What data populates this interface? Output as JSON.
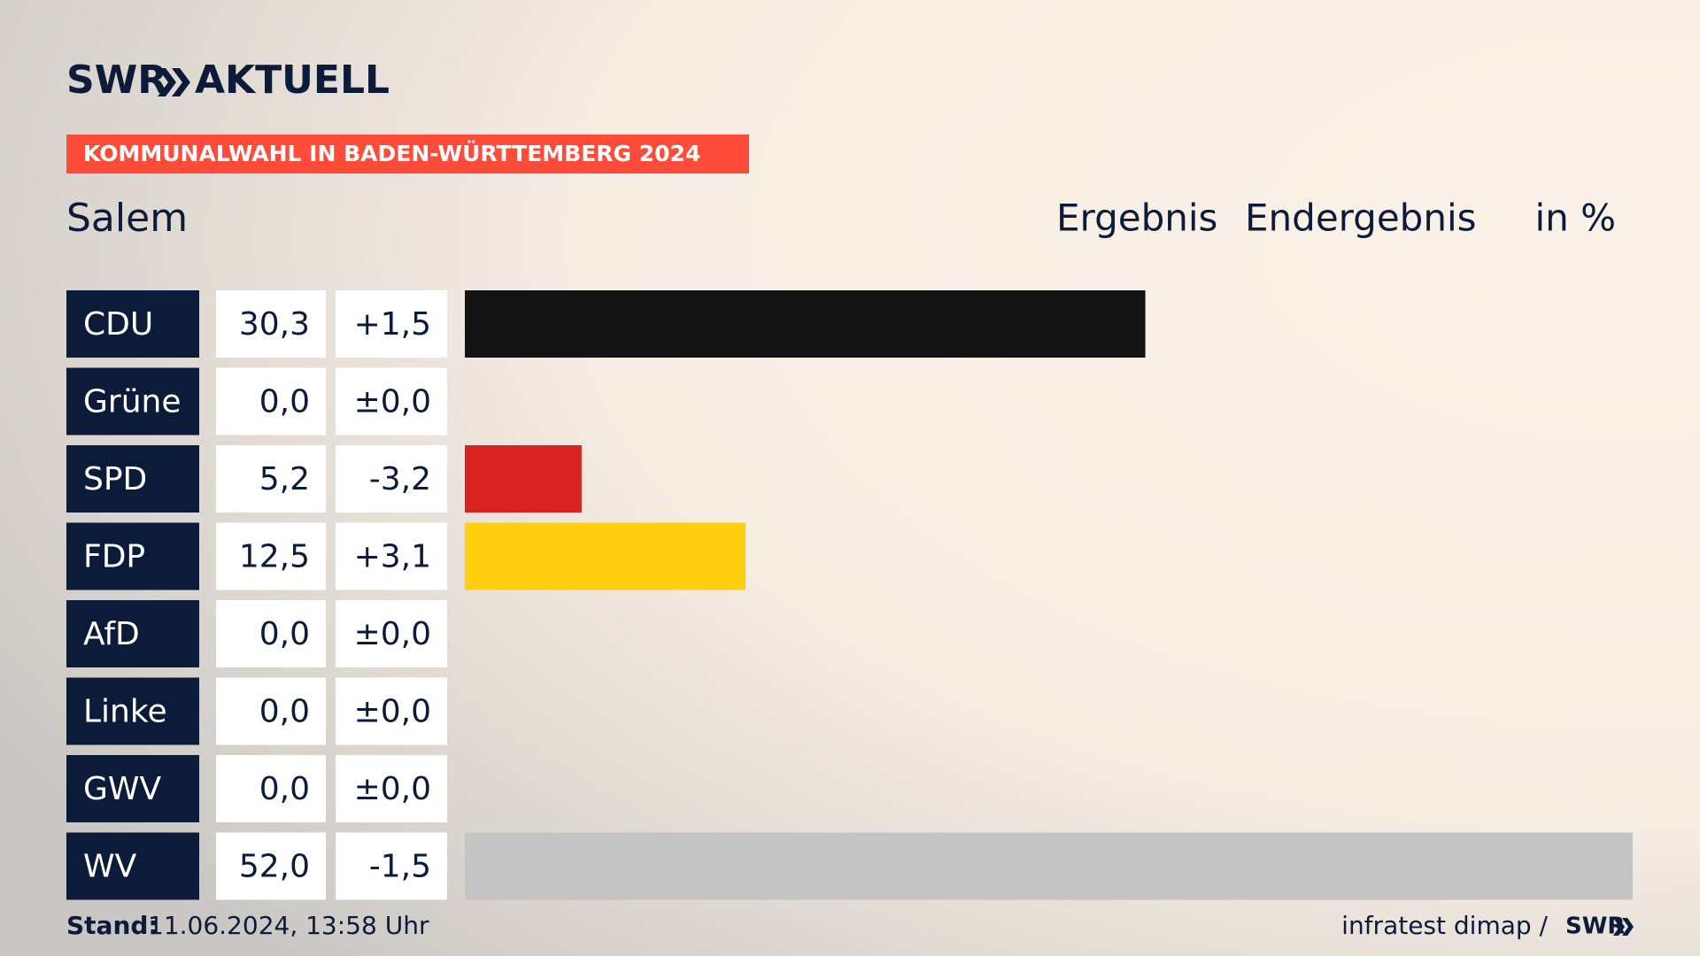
{
  "header": {
    "brand": "SWR",
    "product": "AKTUELL",
    "banner": "KOMMUNALWAHL IN BADEN-WÜRTTEMBERG 2024"
  },
  "chart_data": {
    "type": "bar",
    "title": "Salem",
    "columns": [
      "Ergebnis",
      "Endergebnis",
      "in %"
    ],
    "categories": [
      "CDU",
      "Grüne",
      "SPD",
      "FDP",
      "AfD",
      "Linke",
      "GWV",
      "WV"
    ],
    "values": [
      30.3,
      0.0,
      5.2,
      12.5,
      0.0,
      0.0,
      0.0,
      52.0
    ],
    "value_labels": [
      "30,3",
      "0,0",
      "5,2",
      "12,5",
      "0,0",
      "0,0",
      "0,0",
      "52,0"
    ],
    "changes": [
      1.5,
      0,
      -3.2,
      3.1,
      0,
      0,
      0,
      -1.5
    ],
    "change_labels": [
      "+1,5",
      "±0,0",
      "-3,2",
      "+3,1",
      "±0,0",
      "±0,0",
      "±0,0",
      "-1,5"
    ],
    "colors": [
      "#141414",
      "#46962b",
      "#d92121",
      "#ffcf0f",
      "#0098d4",
      "#be3075",
      "#888888",
      "#c4c4c4"
    ],
    "xlim": [
      0,
      52
    ]
  },
  "footer": {
    "stand_label": "Stand:",
    "stand": "11.06.2024, 13:58 Uhr",
    "source": "infratest dimap /",
    "source_brand": "SWR"
  }
}
